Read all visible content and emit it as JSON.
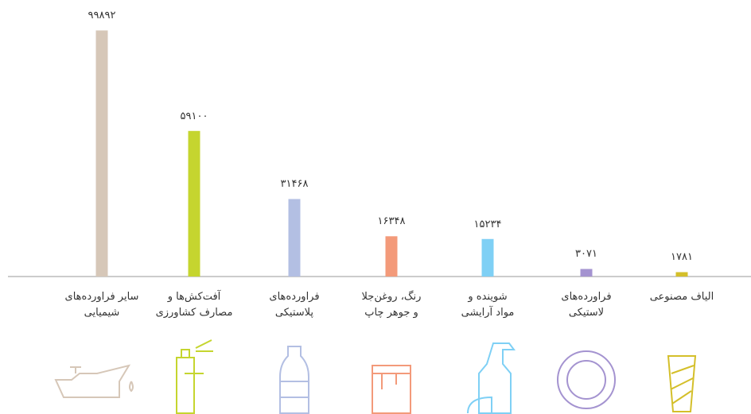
{
  "chart_data": {
    "type": "bar",
    "categories": [
      "سایر فراورده‌های\nشیمیایی",
      "آفت‌کش‌ها و\nمصارف کشاورزی",
      "فراورده‌های\nپلاستیکی",
      "رنگ، روغن‌جلا\nو جوهر چاپ",
      "شوینده و\nمواد آرایشی",
      "فراورده‌های\nلاستیکی",
      "الیاف مصنوعی"
    ],
    "values": [
      99892,
      59100,
      31468,
      16348,
      15234,
      3071,
      1781
    ],
    "value_labels": [
      "۹۹۸۹۲",
      "۵۹۱۰۰",
      "۳۱۴۶۸",
      "۱۶۳۴۸",
      "۱۵۲۳۴",
      "۳۰۷۱",
      "۱۷۸۱"
    ],
    "colors": [
      "#d6c7b8",
      "#c5d52f",
      "#b3bfe3",
      "#f39a7a",
      "#7fd0f5",
      "#a493d0",
      "#d4bf2a"
    ],
    "ylim": [
      0,
      100000
    ]
  }
}
